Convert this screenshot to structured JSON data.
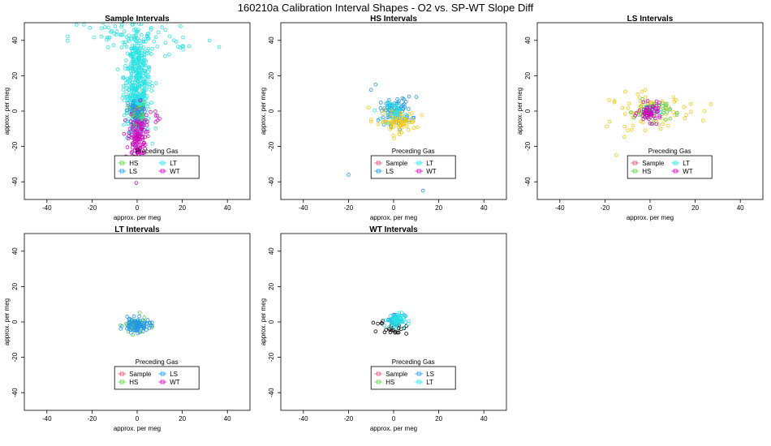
{
  "title": "160210a   Calibration Interval Shapes - O2 vs. SP-WT Slope Diff",
  "colors": {
    "Sample": "#df536b",
    "HS": "#61d04f",
    "LS": "#2297e6",
    "LT": "#28e2e5",
    "WT": "#cd0bbc",
    "Other": "#000000"
  },
  "chart_data": [
    {
      "type": "scatter",
      "title": "Sample Intervals",
      "xlabel": "approx. per meg",
      "ylabel": "approx. per meg",
      "xlim": [
        -50,
        50
      ],
      "ylim": [
        -50,
        50
      ],
      "xticks": [
        -40,
        -20,
        0,
        20,
        40
      ],
      "yticks": [
        -40,
        -20,
        0,
        20,
        40
      ],
      "grid": false,
      "legend": {
        "title": "Preceding Gas",
        "placement": "bottom-center",
        "entries": [
          "HS",
          "LT",
          "LS",
          "WT"
        ]
      },
      "series": [
        {
          "name": "LT",
          "color": "#28e2e5",
          "clusters": [
            {
              "cx": 0,
              "cy": 20,
              "sx": 3,
              "sy": 15,
              "n": 380
            },
            {
              "cx": 0,
              "cy": 0,
              "sx": 2,
              "sy": 6,
              "n": 200
            },
            {
              "cx": -10,
              "cy": 42,
              "sx": 10,
              "sy": 6,
              "n": 40
            },
            {
              "cx": 15,
              "cy": 40,
              "sx": 10,
              "sy": 6,
              "n": 25
            }
          ]
        },
        {
          "name": "WT",
          "color": "#cd0bbc",
          "clusters": [
            {
              "cx": 0,
              "cy": -15,
              "sx": 2,
              "sy": 9,
              "n": 170
            },
            {
              "cx": 7,
              "cy": -3,
              "sx": 1.5,
              "sy": 2,
              "n": 8
            }
          ]
        },
        {
          "name": "HS",
          "color": "#61d04f",
          "clusters": [
            {
              "cx": 0,
              "cy": -1,
              "sx": 2,
              "sy": 3,
              "n": 30
            }
          ]
        },
        {
          "name": "LS",
          "color": "#2297e6",
          "clusters": [
            {
              "cx": 0,
              "cy": 0,
              "sx": 2,
              "sy": 3,
              "n": 25
            }
          ]
        }
      ]
    },
    {
      "type": "scatter",
      "title": "HS Intervals",
      "xlabel": "approx. per meg",
      "ylabel": "approx. per meg",
      "xlim": [
        -50,
        50
      ],
      "ylim": [
        -50,
        50
      ],
      "xticks": [
        -40,
        -20,
        0,
        20,
        40
      ],
      "yticks": [
        -40,
        -20,
        0,
        20,
        40
      ],
      "grid": false,
      "legend": {
        "title": "Preceding Gas",
        "placement": "bottom-center",
        "entries": [
          "Sample",
          "LT",
          "LS",
          "WT"
        ]
      },
      "series": [
        {
          "name": "LS",
          "color": "#2297e6",
          "clusters": [
            {
              "cx": 1,
              "cy": 0,
              "sx": 3.5,
              "sy": 4,
              "n": 90
            }
          ],
          "points": [
            [
              -20,
              -36
            ],
            [
              13,
              -45
            ],
            [
              -8,
              15
            ],
            [
              -10,
              12
            ],
            [
              10,
              8
            ]
          ]
        },
        {
          "name": "Sample",
          "color": "#f5c710",
          "clusters": [
            {
              "cx": 2,
              "cy": -6,
              "sx": 4,
              "sy": 3,
              "n": 80
            }
          ],
          "points": [
            [
              -10,
              -6
            ],
            [
              -11,
              2
            ]
          ]
        },
        {
          "name": "LT",
          "color": "#28e2e5",
          "clusters": [
            {
              "cx": 1,
              "cy": 0,
              "sx": 2.5,
              "sy": 2.5,
              "n": 30
            }
          ]
        }
      ]
    },
    {
      "type": "scatter",
      "title": "LS Intervals",
      "xlabel": "approx. per meg",
      "ylabel": "approx. per meg",
      "xlim": [
        -50,
        50
      ],
      "ylim": [
        -50,
        50
      ],
      "xticks": [
        -40,
        -20,
        0,
        20,
        40
      ],
      "yticks": [
        -40,
        -20,
        0,
        20,
        40
      ],
      "grid": false,
      "legend": {
        "title": "Preceding Gas",
        "placement": "bottom-center",
        "entries": [
          "Sample",
          "LT",
          "HS",
          "WT"
        ]
      },
      "series": [
        {
          "name": "Sample",
          "color": "#f5c710",
          "clusters": [
            {
              "cx": 0,
              "cy": 0,
              "sx": 9,
              "sy": 5,
              "n": 70
            }
          ],
          "points": [
            [
              -15,
              -25
            ],
            [
              27,
              4
            ],
            [
              -18,
              -6
            ],
            [
              -11,
              11
            ],
            [
              24,
              0
            ],
            [
              18,
              4
            ]
          ]
        },
        {
          "name": "HS",
          "color": "#61d04f",
          "clusters": [
            {
              "cx": 1,
              "cy": 0,
              "sx": 4,
              "sy": 3,
              "n": 60
            }
          ]
        },
        {
          "name": "LT",
          "color": "#28e2e5",
          "clusters": [
            {
              "cx": 0,
              "cy": 0,
              "sx": 2,
              "sy": 2,
              "n": 15
            }
          ]
        },
        {
          "name": "WT",
          "color": "#cd0bbc",
          "clusters": [
            {
              "cx": 0,
              "cy": -1,
              "sx": 2.5,
              "sy": 2.5,
              "n": 60
            }
          ]
        }
      ]
    },
    {
      "type": "scatter",
      "title": "LT Intervals",
      "xlabel": "approx. per meg",
      "ylabel": "approx. per meg",
      "xlim": [
        -50,
        50
      ],
      "ylim": [
        -50,
        50
      ],
      "xticks": [
        -40,
        -20,
        0,
        20,
        40
      ],
      "yticks": [
        -40,
        -20,
        0,
        20,
        40
      ],
      "grid": false,
      "legend": {
        "title": "Preceding Gas",
        "placement": "bottom-center",
        "entries": [
          "Sample",
          "LS",
          "HS",
          "WT"
        ]
      },
      "series": [
        {
          "name": "HS",
          "color": "#61d04f",
          "clusters": [
            {
              "cx": -1,
              "cy": -2,
              "sx": 2.5,
              "sy": 2.5,
              "n": 40
            }
          ]
        },
        {
          "name": "LS",
          "color": "#2297e6",
          "clusters": [
            {
              "cx": 0,
              "cy": -2,
              "sx": 3,
              "sy": 2,
              "n": 90
            }
          ]
        }
      ]
    },
    {
      "type": "scatter",
      "title": "WT Intervals",
      "xlabel": "approx. per meg",
      "ylabel": "approx. per meg",
      "xlim": [
        -50,
        50
      ],
      "ylim": [
        -50,
        50
      ],
      "xticks": [
        -40,
        -20,
        0,
        20,
        40
      ],
      "yticks": [
        -40,
        -20,
        0,
        20,
        40
      ],
      "grid": false,
      "legend": {
        "title": "Preceding Gas",
        "placement": "bottom-center",
        "entries": [
          "Sample",
          "LS",
          "HS",
          "LT"
        ]
      },
      "series": [
        {
          "name": "Other",
          "color": "#000000",
          "clusters": [
            {
              "cx": 0,
              "cy": -3,
              "sx": 3,
              "sy": 2,
              "n": 25
            }
          ],
          "points": [
            [
              -7,
              -1
            ],
            [
              -5,
              -1
            ]
          ]
        },
        {
          "name": "LS",
          "color": "#2297e6",
          "clusters": [
            {
              "cx": 1,
              "cy": 1,
              "sx": 2,
              "sy": 2,
              "n": 30
            }
          ]
        },
        {
          "name": "LT",
          "color": "#28e2e5",
          "clusters": [
            {
              "cx": 1,
              "cy": 1,
              "sx": 2,
              "sy": 2,
              "n": 60
            }
          ]
        }
      ]
    }
  ]
}
